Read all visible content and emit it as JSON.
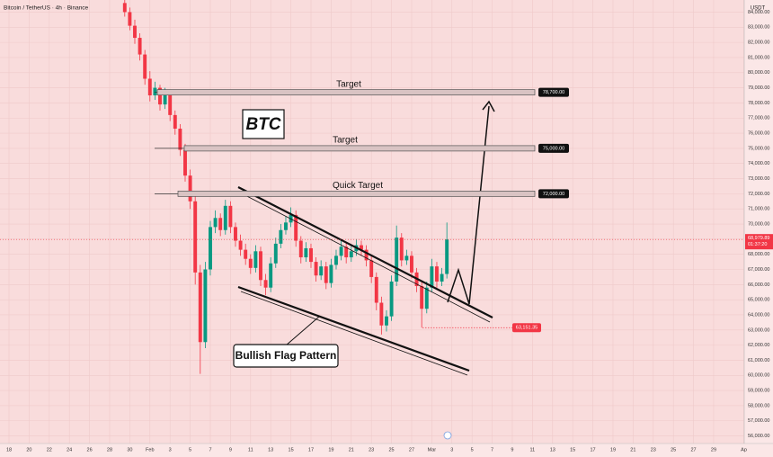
{
  "chart_data": {
    "type": "candlestick",
    "title": "Bitcoin / TetherUS · 4h · Binance",
    "currency": "USDT",
    "x": [
      11.5,
      12,
      12.5,
      13,
      13.5,
      14,
      14.5,
      15,
      15.5,
      16,
      16.5,
      17,
      17.5,
      18,
      18.5,
      19,
      19.5,
      20,
      20.5,
      21,
      21.5,
      22,
      22.5,
      23,
      23.5,
      24,
      24.5,
      25,
      25.5,
      26,
      26.5,
      27,
      27.5,
      28,
      28.5,
      29,
      29.5,
      30,
      30.5,
      31,
      31.5,
      32,
      32.5,
      33,
      33.5,
      34,
      34.5,
      35,
      35.5,
      36,
      36.5,
      37,
      37.5,
      38,
      38.5,
      39,
      39.5,
      40,
      40.5,
      41,
      41.5,
      42,
      42.5,
      43,
      43.5
    ],
    "open": [
      84600,
      84000,
      83100,
      82300,
      81200,
      79600,
      78500,
      79000,
      77900,
      78600,
      77200,
      76300,
      74900,
      73200,
      71500,
      66800,
      62200,
      67000,
      69800,
      70400,
      69600,
      71200,
      69800,
      68900,
      68300,
      67700,
      67100,
      68200,
      66300,
      65800,
      67400,
      68700,
      69600,
      70100,
      70600,
      68900,
      67800,
      68400,
      67500,
      66600,
      67200,
      66100,
      67300,
      67900,
      68500,
      67800,
      68200,
      68600,
      68300,
      67600,
      66500,
      64800,
      63300,
      63900,
      66200,
      69100,
      67600,
      67900,
      66800,
      65900,
      64400,
      65800,
      67200,
      66200,
      66700
    ],
    "high": [
      84900,
      84300,
      83500,
      82600,
      81500,
      80100,
      79400,
      79200,
      79000,
      78800,
      77500,
      76600,
      75300,
      73600,
      71900,
      67300,
      67500,
      70200,
      70900,
      70700,
      71600,
      71500,
      70100,
      69300,
      68700,
      68000,
      68600,
      68500,
      66700,
      67800,
      69100,
      70000,
      70500,
      71100,
      70900,
      69200,
      68800,
      68700,
      67800,
      67600,
      67500,
      67700,
      68300,
      68900,
      68800,
      68600,
      69000,
      68900,
      68600,
      67900,
      66800,
      65200,
      64300,
      66600,
      69900,
      69400,
      68300,
      68200,
      67100,
      66200,
      66200,
      67700,
      67500,
      67100,
      70100
    ],
    "low": [
      83700,
      82800,
      81900,
      80800,
      79200,
      78100,
      78200,
      77500,
      77600,
      76800,
      75900,
      74500,
      72800,
      71000,
      66000,
      60100,
      61800,
      66600,
      69400,
      69200,
      69300,
      69400,
      68500,
      67900,
      67300,
      66700,
      66800,
      65900,
      65300,
      65500,
      67100,
      68400,
      69300,
      69800,
      68500,
      67400,
      67500,
      67100,
      66200,
      66300,
      65700,
      65800,
      67000,
      67600,
      67400,
      67500,
      67900,
      67900,
      67200,
      66100,
      64300,
      62700,
      62900,
      63600,
      65900,
      67200,
      67300,
      66400,
      65500,
      63151.35,
      64100,
      65500,
      65800,
      65900,
      66400
    ],
    "close": [
      84000,
      83100,
      82300,
      81200,
      79600,
      78500,
      79000,
      77900,
      78600,
      77200,
      76300,
      74900,
      73200,
      71500,
      66800,
      62200,
      67000,
      69800,
      70400,
      69600,
      71200,
      69800,
      68900,
      68300,
      67700,
      67100,
      68200,
      66300,
      65800,
      67400,
      68700,
      69600,
      70100,
      70600,
      68900,
      67800,
      68400,
      67500,
      66600,
      67200,
      66100,
      67300,
      67900,
      68500,
      67800,
      68200,
      68600,
      68300,
      67600,
      66500,
      64800,
      63300,
      63900,
      66200,
      69100,
      67600,
      67900,
      66800,
      65900,
      64400,
      65800,
      67200,
      66200,
      66700,
      68979.89
    ],
    "up_color": "#089981",
    "down_color": "#f23645",
    "xlim": [
      -0.893,
      73.04
    ],
    "xticks": [
      {
        "value": 0,
        "label": "18"
      },
      {
        "value": 2,
        "label": "20"
      },
      {
        "value": 4,
        "label": "22"
      },
      {
        "value": 6,
        "label": "24"
      },
      {
        "value": 8,
        "label": "26"
      },
      {
        "value": 10,
        "label": "28"
      },
      {
        "value": 12,
        "label": "30"
      },
      {
        "value": 14,
        "label": "Feb"
      },
      {
        "value": 16,
        "label": "3"
      },
      {
        "value": 18,
        "label": "5"
      },
      {
        "value": 20,
        "label": "7"
      },
      {
        "value": 22,
        "label": "9"
      },
      {
        "value": 24,
        "label": "11"
      },
      {
        "value": 26,
        "label": "13"
      },
      {
        "value": 28,
        "label": "15"
      },
      {
        "value": 30,
        "label": "17"
      },
      {
        "value": 32,
        "label": "19"
      },
      {
        "value": 34,
        "label": "21"
      },
      {
        "value": 36,
        "label": "23"
      },
      {
        "value": 38,
        "label": "25"
      },
      {
        "value": 40,
        "label": "27"
      },
      {
        "value": 42,
        "label": "Mar"
      },
      {
        "value": 44,
        "label": "3"
      },
      {
        "value": 46,
        "label": "5"
      },
      {
        "value": 48,
        "label": "7"
      },
      {
        "value": 50,
        "label": "9"
      },
      {
        "value": 52,
        "label": "11"
      },
      {
        "value": 54,
        "label": "13"
      },
      {
        "value": 56,
        "label": "15"
      },
      {
        "value": 58,
        "label": "17"
      },
      {
        "value": 60,
        "label": "19"
      },
      {
        "value": 62,
        "label": "21"
      },
      {
        "value": 64,
        "label": "23"
      },
      {
        "value": 66,
        "label": "25"
      },
      {
        "value": 68,
        "label": "27"
      },
      {
        "value": 70,
        "label": "29"
      },
      {
        "value": 73,
        "label": "Ap"
      }
    ],
    "ylim": [
      55500,
      84800
    ],
    "yticks": [
      {
        "value": 56000,
        "label": "56,000.00"
      },
      {
        "value": 57000,
        "label": "57,000.00"
      },
      {
        "value": 58000,
        "label": "58,000.00"
      },
      {
        "value": 59000,
        "label": "59,000.00"
      },
      {
        "value": 60000,
        "label": "60,000.00"
      },
      {
        "value": 61000,
        "label": "61,000.00"
      },
      {
        "value": 62000,
        "label": "62,000.00"
      },
      {
        "value": 63000,
        "label": "63,000.00"
      },
      {
        "value": 64000,
        "label": "64,000.00"
      },
      {
        "value": 65000,
        "label": "65,000.00"
      },
      {
        "value": 66000,
        "label": "66,000.00"
      },
      {
        "value": 67000,
        "label": "67,000.00"
      },
      {
        "value": 68000,
        "label": "68,000.00"
      },
      {
        "value": 69000,
        "label": "69,000.00"
      },
      {
        "value": 70000,
        "label": "70,000.00"
      },
      {
        "value": 71000,
        "label": "71,000.00"
      },
      {
        "value": 72000,
        "label": "72,000.00"
      },
      {
        "value": 73000,
        "label": "73,000.00"
      },
      {
        "value": 74000,
        "label": "74,000.00"
      },
      {
        "value": 75000,
        "label": "75,000.00"
      },
      {
        "value": 76000,
        "label": "76,000.00"
      },
      {
        "value": 77000,
        "label": "77,000.00"
      },
      {
        "value": 78000,
        "label": "78,000.00"
      },
      {
        "value": 79000,
        "label": "79,000.00"
      },
      {
        "value": 80000,
        "label": "80,000.00"
      },
      {
        "value": 81000,
        "label": "81,000.00"
      },
      {
        "value": 82000,
        "label": "82,000.00"
      },
      {
        "value": 83000,
        "label": "83,000.00"
      },
      {
        "value": 84000,
        "label": "84,000.00"
      }
    ],
    "grid": true,
    "last_price": {
      "value": 68979.89,
      "label": "68,979.89"
    },
    "countdown": "01:37:20",
    "low_mark": {
      "value": 63151.35,
      "label": "63,151.35"
    },
    "targets": [
      {
        "name": "Target",
        "value": 78700,
        "label": "78,700.00"
      },
      {
        "name": "Target",
        "value": 75000,
        "label": "75,000.00"
      },
      {
        "name": "Quick Target",
        "value": 72000,
        "label": "72,000.00"
      }
    ],
    "annotations": {
      "symbol": "BTC",
      "pattern": "Bullish Flag Pattern"
    }
  }
}
